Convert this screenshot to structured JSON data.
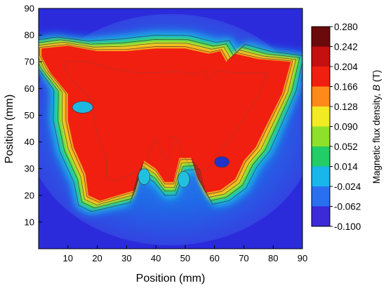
{
  "chart_data": {
    "type": "heatmap",
    "title": "",
    "xlabel": "Position (mm)",
    "ylabel": "Position (mm)",
    "xlim": [
      0,
      90
    ],
    "ylim": [
      0,
      90
    ],
    "x_ticks": [
      "10",
      "20",
      "30",
      "40",
      "50",
      "60",
      "70",
      "80",
      "90"
    ],
    "y_ticks": [
      "10",
      "20",
      "30",
      "40",
      "50",
      "60",
      "70",
      "80",
      "90"
    ],
    "colorbar": {
      "label": "Magnetic flux density, B (T)",
      "label_parts": {
        "prefix": "Magnetic flux density, ",
        "symbol": "B",
        "suffix": " (T)"
      },
      "ticks": [
        "0.280",
        "0.242",
        "0.204",
        "0.166",
        "0.128",
        "0.090",
        "0.052",
        "0.014",
        "-0.024",
        "-0.062",
        "-0.100"
      ],
      "range": [
        -0.1,
        0.28
      ]
    },
    "field_estimate": {
      "background_B": -0.07,
      "outer_halo_B": -0.035,
      "magnet_B": 0.21,
      "magnet_outline": [
        [
          1,
          75
        ],
        [
          10,
          76
        ],
        [
          20,
          74
        ],
        [
          30,
          74
        ],
        [
          40,
          75
        ],
        [
          50,
          75
        ],
        [
          58,
          73
        ],
        [
          62,
          74
        ],
        [
          64,
          70
        ],
        [
          67,
          73
        ],
        [
          75,
          71
        ],
        [
          86,
          70
        ],
        [
          83,
          58
        ],
        [
          78,
          47
        ],
        [
          74,
          38
        ],
        [
          70,
          33
        ],
        [
          67,
          26
        ],
        [
          62,
          22
        ],
        [
          57,
          21
        ],
        [
          54,
          27
        ],
        [
          52,
          34
        ],
        [
          48,
          34
        ],
        [
          46,
          25
        ],
        [
          43,
          25
        ],
        [
          40,
          30
        ],
        [
          36,
          33
        ],
        [
          33,
          22
        ],
        [
          27,
          20
        ],
        [
          21,
          18
        ],
        [
          17,
          20
        ],
        [
          16,
          28
        ],
        [
          12,
          38
        ],
        [
          10,
          48
        ],
        [
          10,
          58
        ],
        [
          4,
          66
        ],
        [
          1,
          72
        ]
      ]
    }
  }
}
